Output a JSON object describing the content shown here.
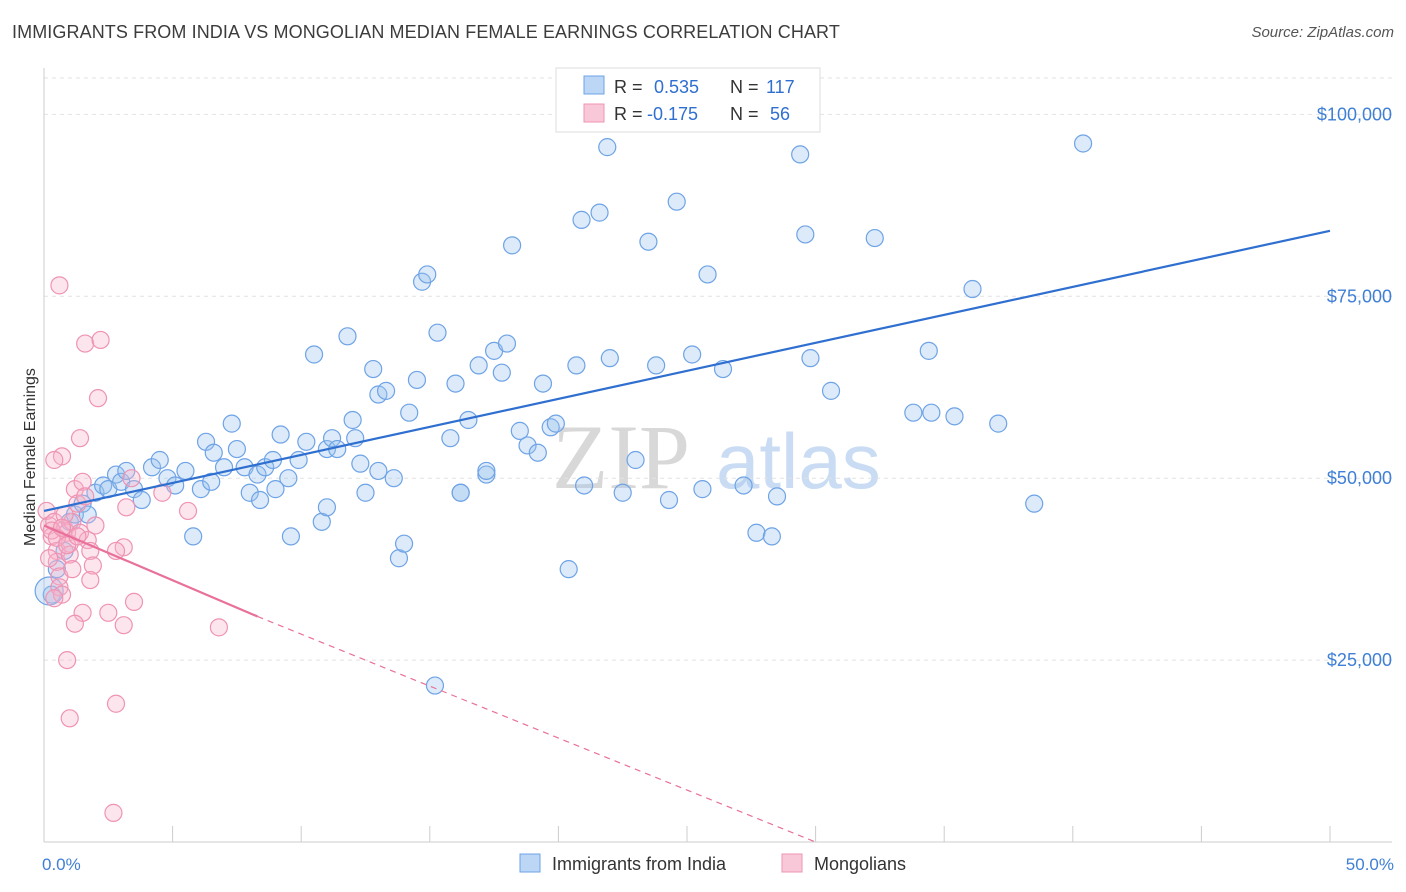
{
  "title": "IMMIGRANTS FROM INDIA VS MONGOLIAN MEDIAN FEMALE EARNINGS CORRELATION CHART",
  "source": "Source: ZipAtlas.com",
  "colors": {
    "blue": "#5b9be0",
    "blue_line": "#2f6fd0",
    "pink": "#f08cb0",
    "pink_line": "#e8709a",
    "axis_text": "#3f7fd6"
  },
  "chart_data": {
    "type": "scatter",
    "title": "IMMIGRANTS FROM INDIA VS MONGOLIAN MEDIAN FEMALE EARNINGS CORRELATION CHART",
    "xlabel": "",
    "ylabel": "Median Female Earnings",
    "xlim": [
      0,
      50
    ],
    "ylim": [
      0,
      105000
    ],
    "x_tick_labels": {
      "min": "0.0%",
      "max": "50.0%"
    },
    "y_ticks": [
      {
        "value": 25000,
        "label": "$25,000"
      },
      {
        "value": 50000,
        "label": "$50,000"
      },
      {
        "value": 75000,
        "label": "$75,000"
      },
      {
        "value": 100000,
        "label": "$100,000"
      }
    ],
    "legend": {
      "position": "top-center",
      "rows": [
        {
          "r_label": "R =",
          "r_value": "0.535",
          "n_label": "N =",
          "n_value": "117"
        },
        {
          "r_label": "R =",
          "r_value": "-0.175",
          "n_label": "N =",
          "n_value": "56"
        }
      ]
    },
    "bottom_legend": [
      "Immigrants from India",
      "Mongolians"
    ],
    "watermark": {
      "zip": "ZIP",
      "atlas": "atlas"
    },
    "series": [
      {
        "name": "Immigrants from India",
        "color": "#5b9be0",
        "trend": {
          "x0": 0,
          "y0": 45500,
          "x1": 50,
          "y1": 84000
        },
        "points": [
          [
            0.3,
            34000
          ],
          [
            0.5,
            37500
          ],
          [
            0.8,
            40000
          ],
          [
            1.0,
            44000
          ],
          [
            1.2,
            45000
          ],
          [
            1.5,
            46500
          ],
          [
            1.7,
            45000
          ],
          [
            2.0,
            48000
          ],
          [
            2.3,
            49000
          ],
          [
            2.5,
            48500
          ],
          [
            2.8,
            50500
          ],
          [
            3.0,
            49500
          ],
          [
            3.2,
            51000
          ],
          [
            3.5,
            48500
          ],
          [
            3.8,
            47000
          ],
          [
            4.2,
            51500
          ],
          [
            4.5,
            52500
          ],
          [
            4.8,
            50000
          ],
          [
            5.1,
            49000
          ],
          [
            5.5,
            51000
          ],
          [
            5.8,
            42000
          ],
          [
            6.1,
            48500
          ],
          [
            6.3,
            55000
          ],
          [
            6.6,
            53500
          ],
          [
            7.0,
            51500
          ],
          [
            7.3,
            57500
          ],
          [
            7.5,
            54000
          ],
          [
            7.8,
            51500
          ],
          [
            8.0,
            48000
          ],
          [
            8.3,
            50500
          ],
          [
            8.6,
            51500
          ],
          [
            8.9,
            52500
          ],
          [
            9.2,
            56000
          ],
          [
            9.5,
            50000
          ],
          [
            9.6,
            42000
          ],
          [
            9.9,
            52500
          ],
          [
            10.2,
            55000
          ],
          [
            10.5,
            67000
          ],
          [
            10.8,
            44000
          ],
          [
            11.0,
            54000
          ],
          [
            11.2,
            55500
          ],
          [
            11.4,
            54000
          ],
          [
            11.8,
            69500
          ],
          [
            12.0,
            58000
          ],
          [
            12.3,
            52000
          ],
          [
            12.5,
            48000
          ],
          [
            12.8,
            65000
          ],
          [
            13.0,
            61500
          ],
          [
            13.3,
            62000
          ],
          [
            13.6,
            50000
          ],
          [
            13.8,
            39000
          ],
          [
            14.0,
            41000
          ],
          [
            14.2,
            59000
          ],
          [
            14.5,
            63500
          ],
          [
            14.7,
            77000
          ],
          [
            14.9,
            78000
          ],
          [
            15.3,
            70000
          ],
          [
            15.8,
            55500
          ],
          [
            16.0,
            63000
          ],
          [
            16.2,
            48000
          ],
          [
            16.5,
            58000
          ],
          [
            16.9,
            65500
          ],
          [
            17.2,
            50500
          ],
          [
            17.5,
            67500
          ],
          [
            17.8,
            64500
          ],
          [
            18.0,
            68500
          ],
          [
            18.2,
            82000
          ],
          [
            18.5,
            56500
          ],
          [
            18.8,
            54500
          ],
          [
            19.2,
            53500
          ],
          [
            19.4,
            63000
          ],
          [
            19.7,
            57000
          ],
          [
            19.9,
            57500
          ],
          [
            20.4,
            37500
          ],
          [
            20.7,
            65500
          ],
          [
            20.9,
            85500
          ],
          [
            21.6,
            86500
          ],
          [
            21.9,
            95500
          ],
          [
            22.0,
            66500
          ],
          [
            22.5,
            48000
          ],
          [
            23.0,
            52500
          ],
          [
            23.5,
            82500
          ],
          [
            23.8,
            65500
          ],
          [
            24.3,
            47000
          ],
          [
            24.6,
            88000
          ],
          [
            25.2,
            67000
          ],
          [
            25.6,
            48500
          ],
          [
            25.8,
            78000
          ],
          [
            26.4,
            65000
          ],
          [
            27.2,
            49000
          ],
          [
            27.7,
            42500
          ],
          [
            28.5,
            47500
          ],
          [
            29.4,
            94500
          ],
          [
            29.6,
            83500
          ],
          [
            29.8,
            66500
          ],
          [
            30.6,
            62000
          ],
          [
            32.3,
            83000
          ],
          [
            33.8,
            59000
          ],
          [
            34.4,
            67500
          ],
          [
            34.5,
            59000
          ],
          [
            35.4,
            58500
          ],
          [
            36.1,
            76000
          ],
          [
            37.1,
            57500
          ],
          [
            38.5,
            46500
          ],
          [
            15.2,
            21500
          ],
          [
            28.3,
            42000
          ],
          [
            40.4,
            96000
          ],
          [
            13.0,
            51000
          ],
          [
            11.0,
            46000
          ],
          [
            16.2,
            48000
          ],
          [
            6.5,
            49500
          ],
          [
            9.0,
            48500
          ],
          [
            8.4,
            47000
          ],
          [
            17.2,
            51000
          ],
          [
            21.0,
            49000
          ],
          [
            12.1,
            55500
          ]
        ]
      },
      {
        "name": "Mongolians",
        "color": "#f08cb0",
        "trend": {
          "x0": 0,
          "y0": 43500,
          "x1": 8.3,
          "y1": 31000,
          "x_dash_end": 30,
          "y_dash_end": 0
        },
        "points": [
          [
            0.1,
            45500
          ],
          [
            0.2,
            43500
          ],
          [
            0.3,
            42000
          ],
          [
            0.4,
            44000
          ],
          [
            0.5,
            40000
          ],
          [
            0.5,
            38500
          ],
          [
            0.6,
            36500
          ],
          [
            0.6,
            35000
          ],
          [
            0.7,
            34000
          ],
          [
            0.8,
            43000
          ],
          [
            0.9,
            42500
          ],
          [
            1.0,
            41000
          ],
          [
            1.0,
            39500
          ],
          [
            1.1,
            44000
          ],
          [
            1.1,
            37500
          ],
          [
            1.2,
            48500
          ],
          [
            1.3,
            46500
          ],
          [
            1.4,
            42500
          ],
          [
            1.5,
            49500
          ],
          [
            1.6,
            47500
          ],
          [
            1.7,
            41500
          ],
          [
            1.8,
            40000
          ],
          [
            1.9,
            38000
          ],
          [
            2.0,
            43500
          ],
          [
            0.6,
            76500
          ],
          [
            1.6,
            68500
          ],
          [
            2.2,
            69000
          ],
          [
            2.1,
            61000
          ],
          [
            1.4,
            55500
          ],
          [
            0.7,
            53000
          ],
          [
            0.4,
            52500
          ],
          [
            0.8,
            45000
          ],
          [
            3.4,
            50000
          ],
          [
            3.2,
            46000
          ],
          [
            3.1,
            40500
          ],
          [
            2.8,
            40000
          ],
          [
            3.5,
            33000
          ],
          [
            2.5,
            31500
          ],
          [
            1.5,
            31500
          ],
          [
            1.2,
            30000
          ],
          [
            3.1,
            29800
          ],
          [
            6.8,
            29500
          ],
          [
            0.9,
            25000
          ],
          [
            2.8,
            19000
          ],
          [
            1.0,
            17000
          ],
          [
            2.7,
            4000
          ],
          [
            5.6,
            45500
          ],
          [
            4.6,
            48000
          ],
          [
            0.3,
            42800
          ],
          [
            0.5,
            41800
          ],
          [
            0.7,
            43200
          ],
          [
            0.9,
            40800
          ],
          [
            1.3,
            42000
          ],
          [
            0.2,
            39000
          ],
          [
            1.8,
            36000
          ],
          [
            0.4,
            33500
          ]
        ]
      }
    ]
  }
}
